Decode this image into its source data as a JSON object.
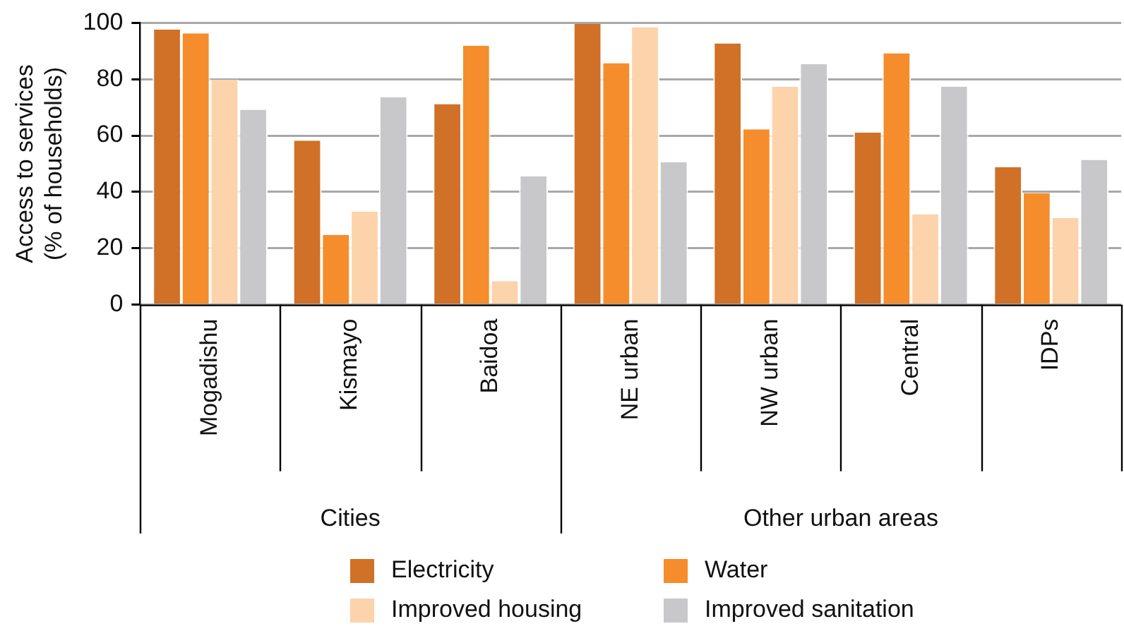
{
  "chart_data": {
    "type": "bar",
    "ylabel": [
      "Access to services",
      "(% of households)"
    ],
    "categories": [
      "Mogadishu",
      "Kismayo",
      "Baidoa",
      "NE urban",
      "NW urban",
      "Central",
      "IDPs"
    ],
    "series": [
      {
        "name": "Electricity",
        "color": "#d07127",
        "values": [
          97.6,
          58.2,
          71.2,
          99.6,
          92.7,
          61.1,
          48.8
        ]
      },
      {
        "name": "Water",
        "color": "#f58d2c",
        "values": [
          96.3,
          24.8,
          91.9,
          85.7,
          62.2,
          89.2,
          39.6
        ]
      },
      {
        "name": "Improved housing",
        "color": "#fdd3ab",
        "values": [
          79.8,
          33,
          8.4,
          98.5,
          77.4,
          32.1,
          30.8
        ]
      },
      {
        "name": "Improved sanitation",
        "color": "#c8c8ca",
        "values": [
          69.2,
          73.6,
          45.5,
          50.5,
          85.3,
          77.4,
          51.4
        ]
      }
    ],
    "annotations": [
      "Cities",
      "Other urban areas"
    ],
    "ylim": [
      0,
      100
    ],
    "yticks": [
      0,
      20,
      40,
      60,
      80,
      100
    ],
    "grid": "y",
    "legend": "bottom"
  }
}
